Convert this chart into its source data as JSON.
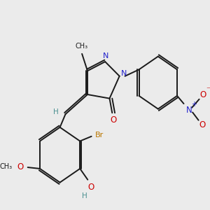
{
  "background_color": "#ebebeb",
  "bond_color": "#1a1a1a",
  "nitrogen_color": "#2020cc",
  "oxygen_color": "#cc0000",
  "bromine_color": "#bb7700",
  "teal_color": "#4a9090",
  "figsize": [
    3.0,
    3.0
  ],
  "dpi": 100,
  "xlim": [
    0,
    10
  ],
  "ylim": [
    0,
    10
  ]
}
